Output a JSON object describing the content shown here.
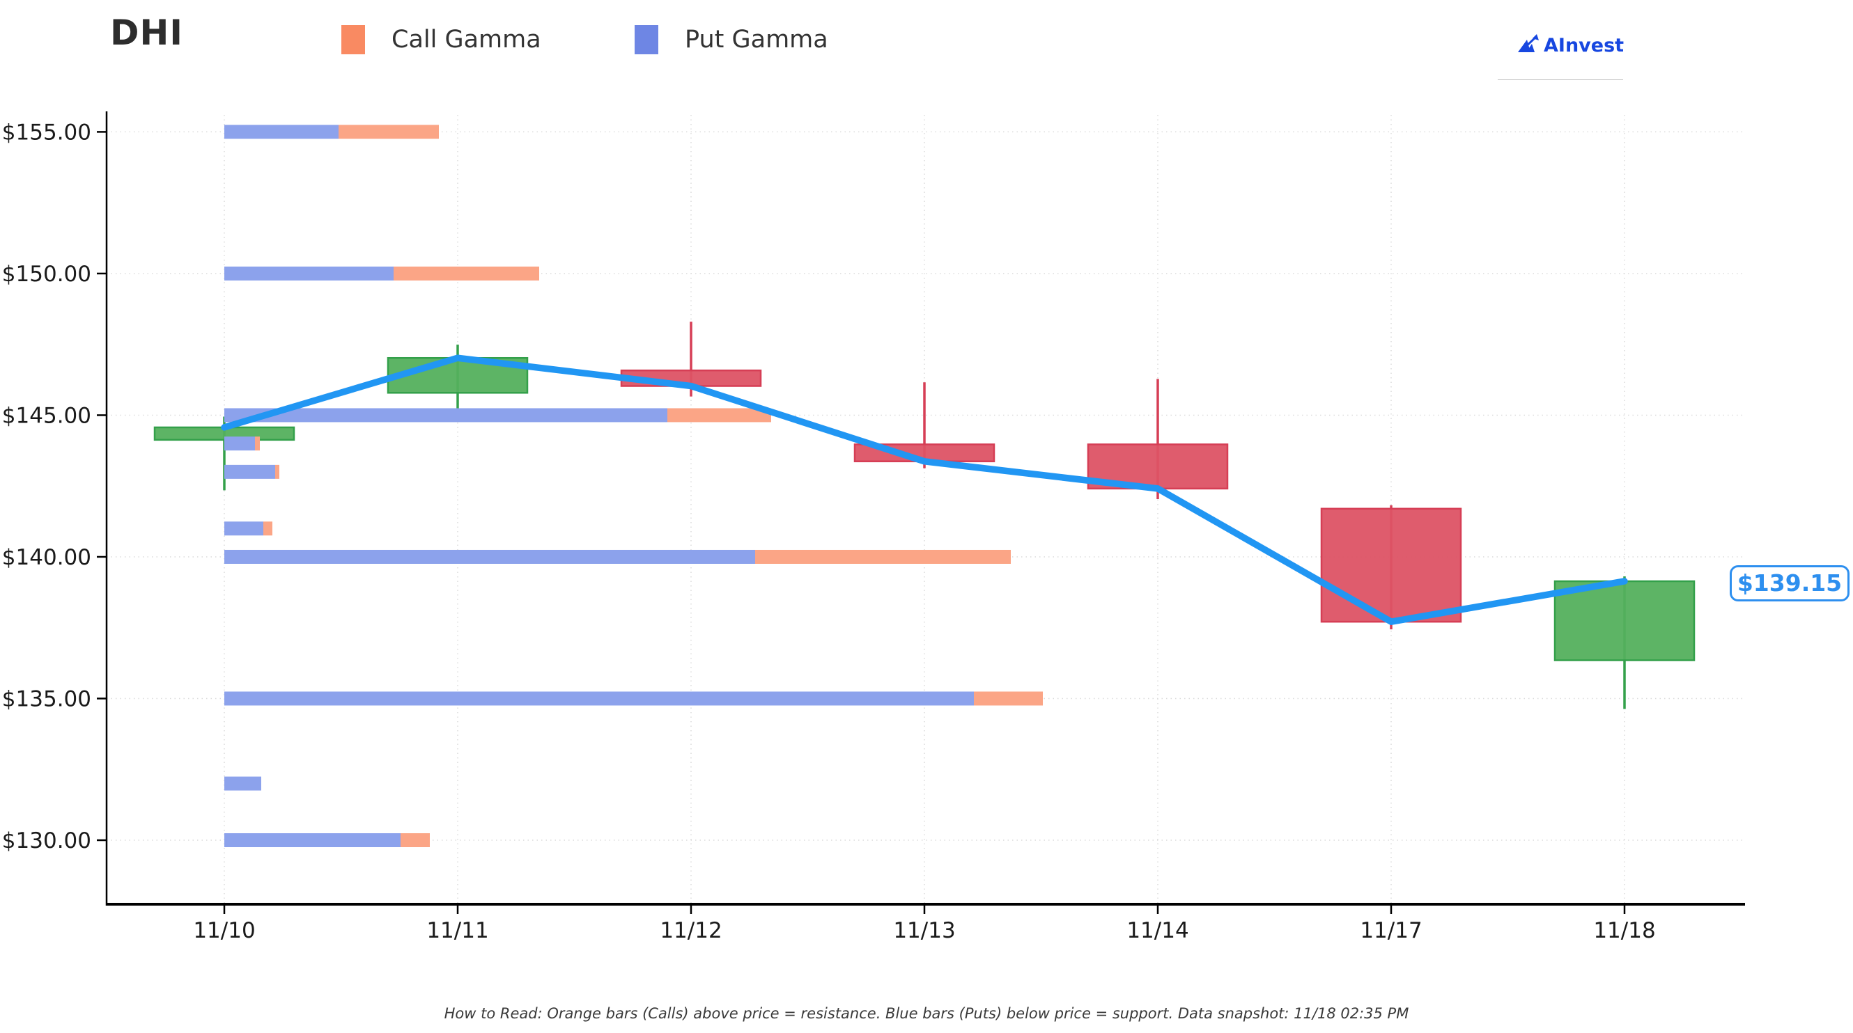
{
  "header": {
    "title": "DHI",
    "legend": [
      {
        "label": "Call Gamma",
        "color": "#f98a62"
      },
      {
        "label": "Put Gamma",
        "color": "#6e86e4"
      }
    ],
    "brand": {
      "name": "AInvest",
      "color": "#1747e0"
    }
  },
  "price_label": {
    "text": "$139.15"
  },
  "footer": {
    "note": "How to Read: Orange bars (Calls) above price = resistance. Blue bars (Puts) below price = support. Data snapshot: 11/18 02:35 PM"
  },
  "chart_data": {
    "type": "candlestick+bar",
    "title": "DHI option gamma levels vs price",
    "x_labels": [
      "11/10",
      "11/11",
      "11/12",
      "11/13",
      "11/14",
      "11/17",
      "11/18"
    ],
    "y_ticks": [
      {
        "value": 155,
        "label": "$155.00"
      },
      {
        "value": 150,
        "label": "$150.00"
      },
      {
        "value": 145,
        "label": "$145.00"
      },
      {
        "value": 140,
        "label": "$140.00"
      },
      {
        "value": 135,
        "label": "$135.00"
      },
      {
        "value": 130,
        "label": "$130.00"
      }
    ],
    "ylim": [
      127.74,
      155.6
    ],
    "candles": [
      {
        "date": "11/10",
        "open": 144.13,
        "high": 144.95,
        "low": 142.35,
        "close": 144.57
      },
      {
        "date": "11/11",
        "open": 145.79,
        "high": 147.49,
        "low": 144.97,
        "close": 147.02
      },
      {
        "date": "11/12",
        "open": 146.58,
        "high": 148.3,
        "low": 145.66,
        "close": 146.03
      },
      {
        "date": "11/13",
        "open": 143.97,
        "high": 146.16,
        "low": 143.13,
        "close": 143.37
      },
      {
        "date": "11/14",
        "open": 143.97,
        "high": 146.28,
        "low": 142.04,
        "close": 142.41
      },
      {
        "date": "11/17",
        "open": 141.7,
        "high": 141.82,
        "low": 137.44,
        "close": 137.71
      },
      {
        "date": "11/18",
        "open": 136.35,
        "high": 139.31,
        "low": 134.63,
        "close": 139.14
      }
    ],
    "price_line": {
      "values": [
        144.57,
        147.02,
        146.03,
        143.37,
        142.41,
        137.71,
        139.14
      ]
    },
    "current_price": 139.15,
    "gamma_bars_units": "px",
    "gamma_bars": [
      {
        "strike": 155,
        "put": 164,
        "call": 144
      },
      {
        "strike": 150,
        "put": 243,
        "call": 209
      },
      {
        "strike": 145,
        "put": 636,
        "call": 149
      },
      {
        "strike": 144,
        "put": 44,
        "call": 7
      },
      {
        "strike": 143,
        "put": 73,
        "call": 6
      },
      {
        "strike": 141,
        "put": 56,
        "call": 13
      },
      {
        "strike": 140,
        "put": 762,
        "call": 367
      },
      {
        "strike": 135,
        "put": 1076,
        "call": 99
      },
      {
        "strike": 132,
        "put": 53,
        "call": 0
      },
      {
        "strike": 130,
        "put": 253,
        "call": 42
      }
    ],
    "legend_position": "top",
    "grid": true,
    "colors": {
      "put_bar": "#8ca2ec",
      "call_bar": "#fba586",
      "candle_up": "#54b05d",
      "candle_up_border": "#33a04a",
      "candle_down": "#dd5365",
      "candle_down_border": "#d63e55",
      "price_line": "#2196f3",
      "grid": "#dcdcdc",
      "axis": "#000000",
      "tick_text": "#1a1a1a"
    }
  }
}
